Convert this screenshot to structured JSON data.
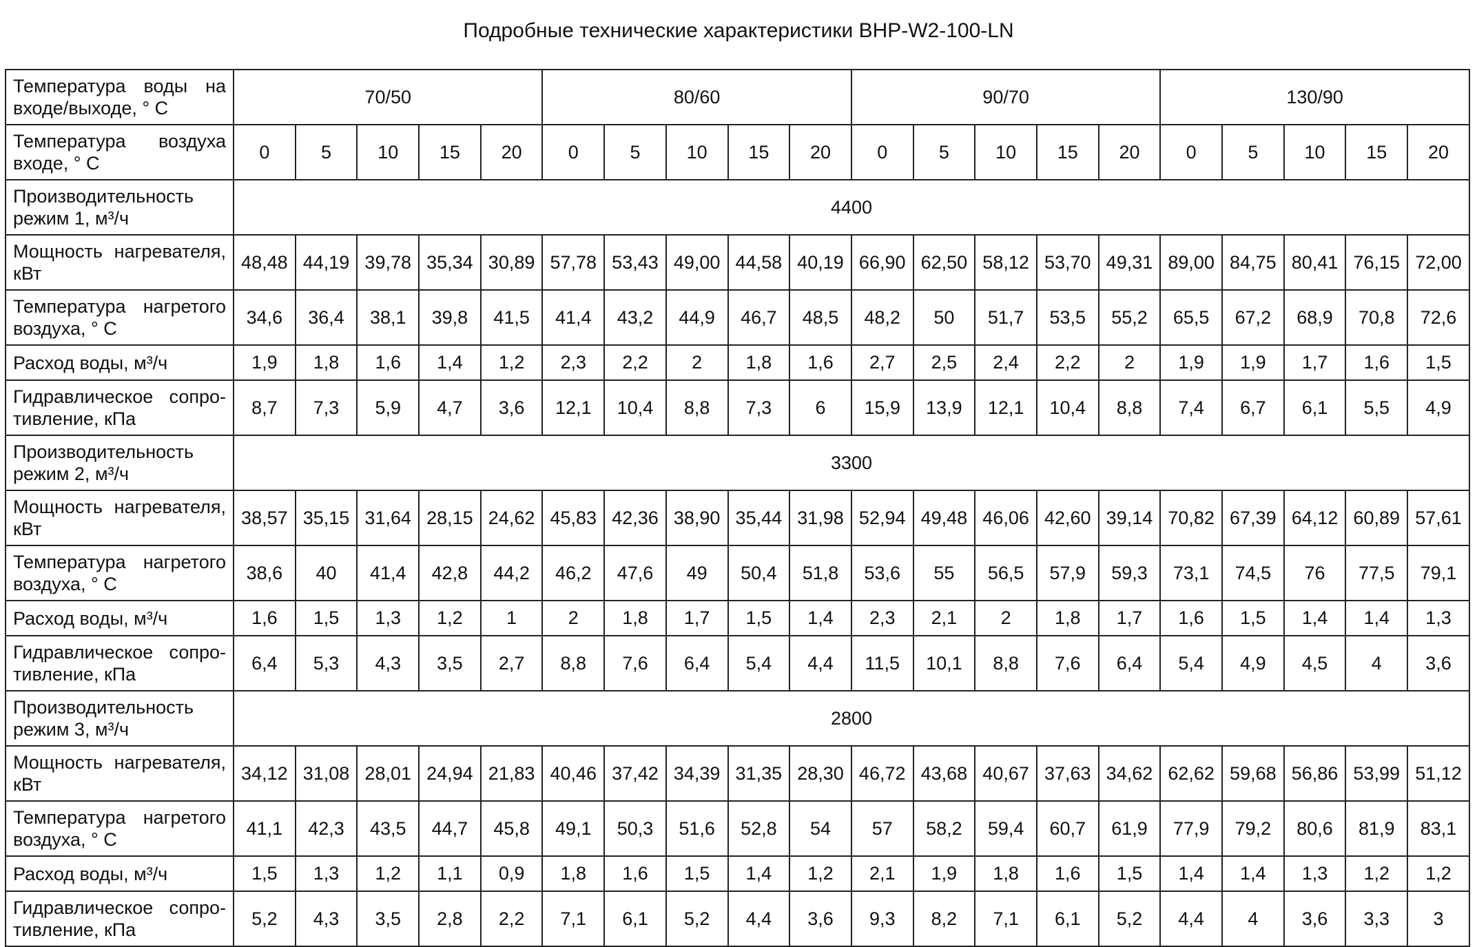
{
  "title": "Подробные технические характеристики BHP-W2-100-LN",
  "table": {
    "water": {
      "label": "Температура воды на входе/выходе, ° С",
      "groups": [
        "70/50",
        "80/60",
        "90/70",
        "130/90"
      ]
    },
    "air": {
      "label": "Температура воздуха входе, ° С",
      "values": [
        "0",
        "5",
        "10",
        "15",
        "20",
        "0",
        "5",
        "10",
        "15",
        "20",
        "0",
        "5",
        "10",
        "15",
        "20",
        "0",
        "5",
        "10",
        "15",
        "20"
      ]
    },
    "sections": [
      {
        "label": "Производительность режим 1, м³/ч",
        "value": "4400",
        "rows": [
          {
            "label": "Мощность нагревателя, кВт",
            "cells": [
              "48,48",
              "44,19",
              "39,78",
              "35,34",
              "30,89",
              "57,78",
              "53,43",
              "49,00",
              "44,58",
              "40,19",
              "66,90",
              "62,50",
              "58,12",
              "53,70",
              "49,31",
              "89,00",
              "84,75",
              "80,41",
              "76,15",
              "72,00"
            ]
          },
          {
            "label": "Температура нагретого воздуха, ° С",
            "cells": [
              "34,6",
              "36,4",
              "38,1",
              "39,8",
              "41,5",
              "41,4",
              "43,2",
              "44,9",
              "46,7",
              "48,5",
              "48,2",
              "50",
              "51,7",
              "53,5",
              "55,2",
              "65,5",
              "67,2",
              "68,9",
              "70,8",
              "72,6"
            ]
          },
          {
            "label": "Расход воды, м³/ч",
            "cells": [
              "1,9",
              "1,8",
              "1,6",
              "1,4",
              "1,2",
              "2,3",
              "2,2",
              "2",
              "1,8",
              "1,6",
              "2,7",
              "2,5",
              "2,4",
              "2,2",
              "2",
              "1,9",
              "1,9",
              "1,7",
              "1,6",
              "1,5"
            ]
          },
          {
            "label": "Гидравлическое сопро-тивление, кПа",
            "cells": [
              "8,7",
              "7,3",
              "5,9",
              "4,7",
              "3,6",
              "12,1",
              "10,4",
              "8,8",
              "7,3",
              "6",
              "15,9",
              "13,9",
              "12,1",
              "10,4",
              "8,8",
              "7,4",
              "6,7",
              "6,1",
              "5,5",
              "4,9"
            ]
          }
        ]
      },
      {
        "label": "Производительность режим 2, м³/ч",
        "value": "3300",
        "rows": [
          {
            "label": "Мощность нагревателя, кВт",
            "cells": [
              "38,57",
              "35,15",
              "31,64",
              "28,15",
              "24,62",
              "45,83",
              "42,36",
              "38,90",
              "35,44",
              "31,98",
              "52,94",
              "49,48",
              "46,06",
              "42,60",
              "39,14",
              "70,82",
              "67,39",
              "64,12",
              "60,89",
              "57,61"
            ]
          },
          {
            "label": "Температура нагретого воздуха, ° С",
            "cells": [
              "38,6",
              "40",
              "41,4",
              "42,8",
              "44,2",
              "46,2",
              "47,6",
              "49",
              "50,4",
              "51,8",
              "53,6",
              "55",
              "56,5",
              "57,9",
              "59,3",
              "73,1",
              "74,5",
              "76",
              "77,5",
              "79,1"
            ]
          },
          {
            "label": "Расход воды, м³/ч",
            "cells": [
              "1,6",
              "1,5",
              "1,3",
              "1,2",
              "1",
              "2",
              "1,8",
              "1,7",
              "1,5",
              "1,4",
              "2,3",
              "2,1",
              "2",
              "1,8",
              "1,7",
              "1,6",
              "1,5",
              "1,4",
              "1,4",
              "1,3"
            ]
          },
          {
            "label": "Гидравлическое сопро-тивление, кПа",
            "cells": [
              "6,4",
              "5,3",
              "4,3",
              "3,5",
              "2,7",
              "8,8",
              "7,6",
              "6,4",
              "5,4",
              "4,4",
              "11,5",
              "10,1",
              "8,8",
              "7,6",
              "6,4",
              "5,4",
              "4,9",
              "4,5",
              "4",
              "3,6"
            ]
          }
        ]
      },
      {
        "label": "Производительность режим 3, м³/ч",
        "value": "2800",
        "rows": [
          {
            "label": "Мощность нагревателя, кВт",
            "cells": [
              "34,12",
              "31,08",
              "28,01",
              "24,94",
              "21,83",
              "40,46",
              "37,42",
              "34,39",
              "31,35",
              "28,30",
              "46,72",
              "43,68",
              "40,67",
              "37,63",
              "34,62",
              "62,62",
              "59,68",
              "56,86",
              "53,99",
              "51,12"
            ]
          },
          {
            "label": "Температура нагретого воздуха, ° С",
            "cells": [
              "41,1",
              "42,3",
              "43,5",
              "44,7",
              "45,8",
              "49,1",
              "50,3",
              "51,6",
              "52,8",
              "54",
              "57",
              "58,2",
              "59,4",
              "60,7",
              "61,9",
              "77,9",
              "79,2",
              "80,6",
              "81,9",
              "83,1"
            ]
          },
          {
            "label": "Расход воды, м³/ч",
            "cells": [
              "1,5",
              "1,3",
              "1,2",
              "1,1",
              "0,9",
              "1,8",
              "1,6",
              "1,5",
              "1,4",
              "1,2",
              "2,1",
              "1,9",
              "1,8",
              "1,6",
              "1,5",
              "1,4",
              "1,4",
              "1,3",
              "1,2",
              "1,2"
            ]
          },
          {
            "label": "Гидравлическое сопро-тивление, кПа",
            "cells": [
              "5,2",
              "4,3",
              "3,5",
              "2,8",
              "2,2",
              "7,1",
              "6,1",
              "5,2",
              "4,4",
              "3,6",
              "9,3",
              "8,2",
              "7,1",
              "6,1",
              "5,2",
              "4,4",
              "4",
              "3,6",
              "3,3",
              "3"
            ]
          }
        ]
      }
    ]
  }
}
